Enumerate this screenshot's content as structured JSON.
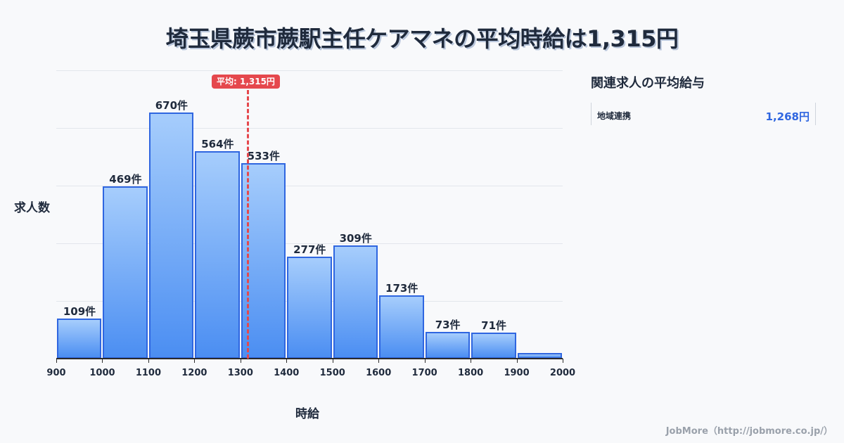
{
  "title": "埼玉県蕨市蕨駅主任ケアマネの平均時給は1,315円",
  "chart_data": {
    "type": "bar",
    "title": "埼玉県蕨市蕨駅主任ケアマネの平均時給は1,315円",
    "xlabel": "時給",
    "ylabel": "求人数",
    "categories": [
      "900-1000",
      "1000-1100",
      "1100-1200",
      "1200-1300",
      "1300-1400",
      "1400-1500",
      "1500-1600",
      "1600-1700",
      "1700-1800",
      "1800-1900",
      "1900-2000"
    ],
    "values": [
      109,
      469,
      670,
      564,
      533,
      277,
      309,
      173,
      73,
      71,
      15
    ],
    "value_labels": [
      "109件",
      "469件",
      "670件",
      "564件",
      "533件",
      "277件",
      "309件",
      "173件",
      "73件",
      "71件",
      ""
    ],
    "x_ticks": [
      "900",
      "1000",
      "1100",
      "1200",
      "1300",
      "1400",
      "1500",
      "1600",
      "1700",
      "1800",
      "1900",
      "2000"
    ],
    "xlim": [
      900,
      2000
    ],
    "ylim": [
      0,
      785
    ],
    "grid": true,
    "mean": 1315,
    "mean_label": "平均: 1,315円",
    "mean_color": "#e5484d",
    "bar_color": "#4b8ef2",
    "bar_border_color": "#2f66e0"
  },
  "sidebar": {
    "title": "関連求人の平均給与",
    "items": [
      {
        "label": "地域連携",
        "value": "1,268円"
      }
    ]
  },
  "credit": "JobMore（http://jobmore.co.jp/）"
}
